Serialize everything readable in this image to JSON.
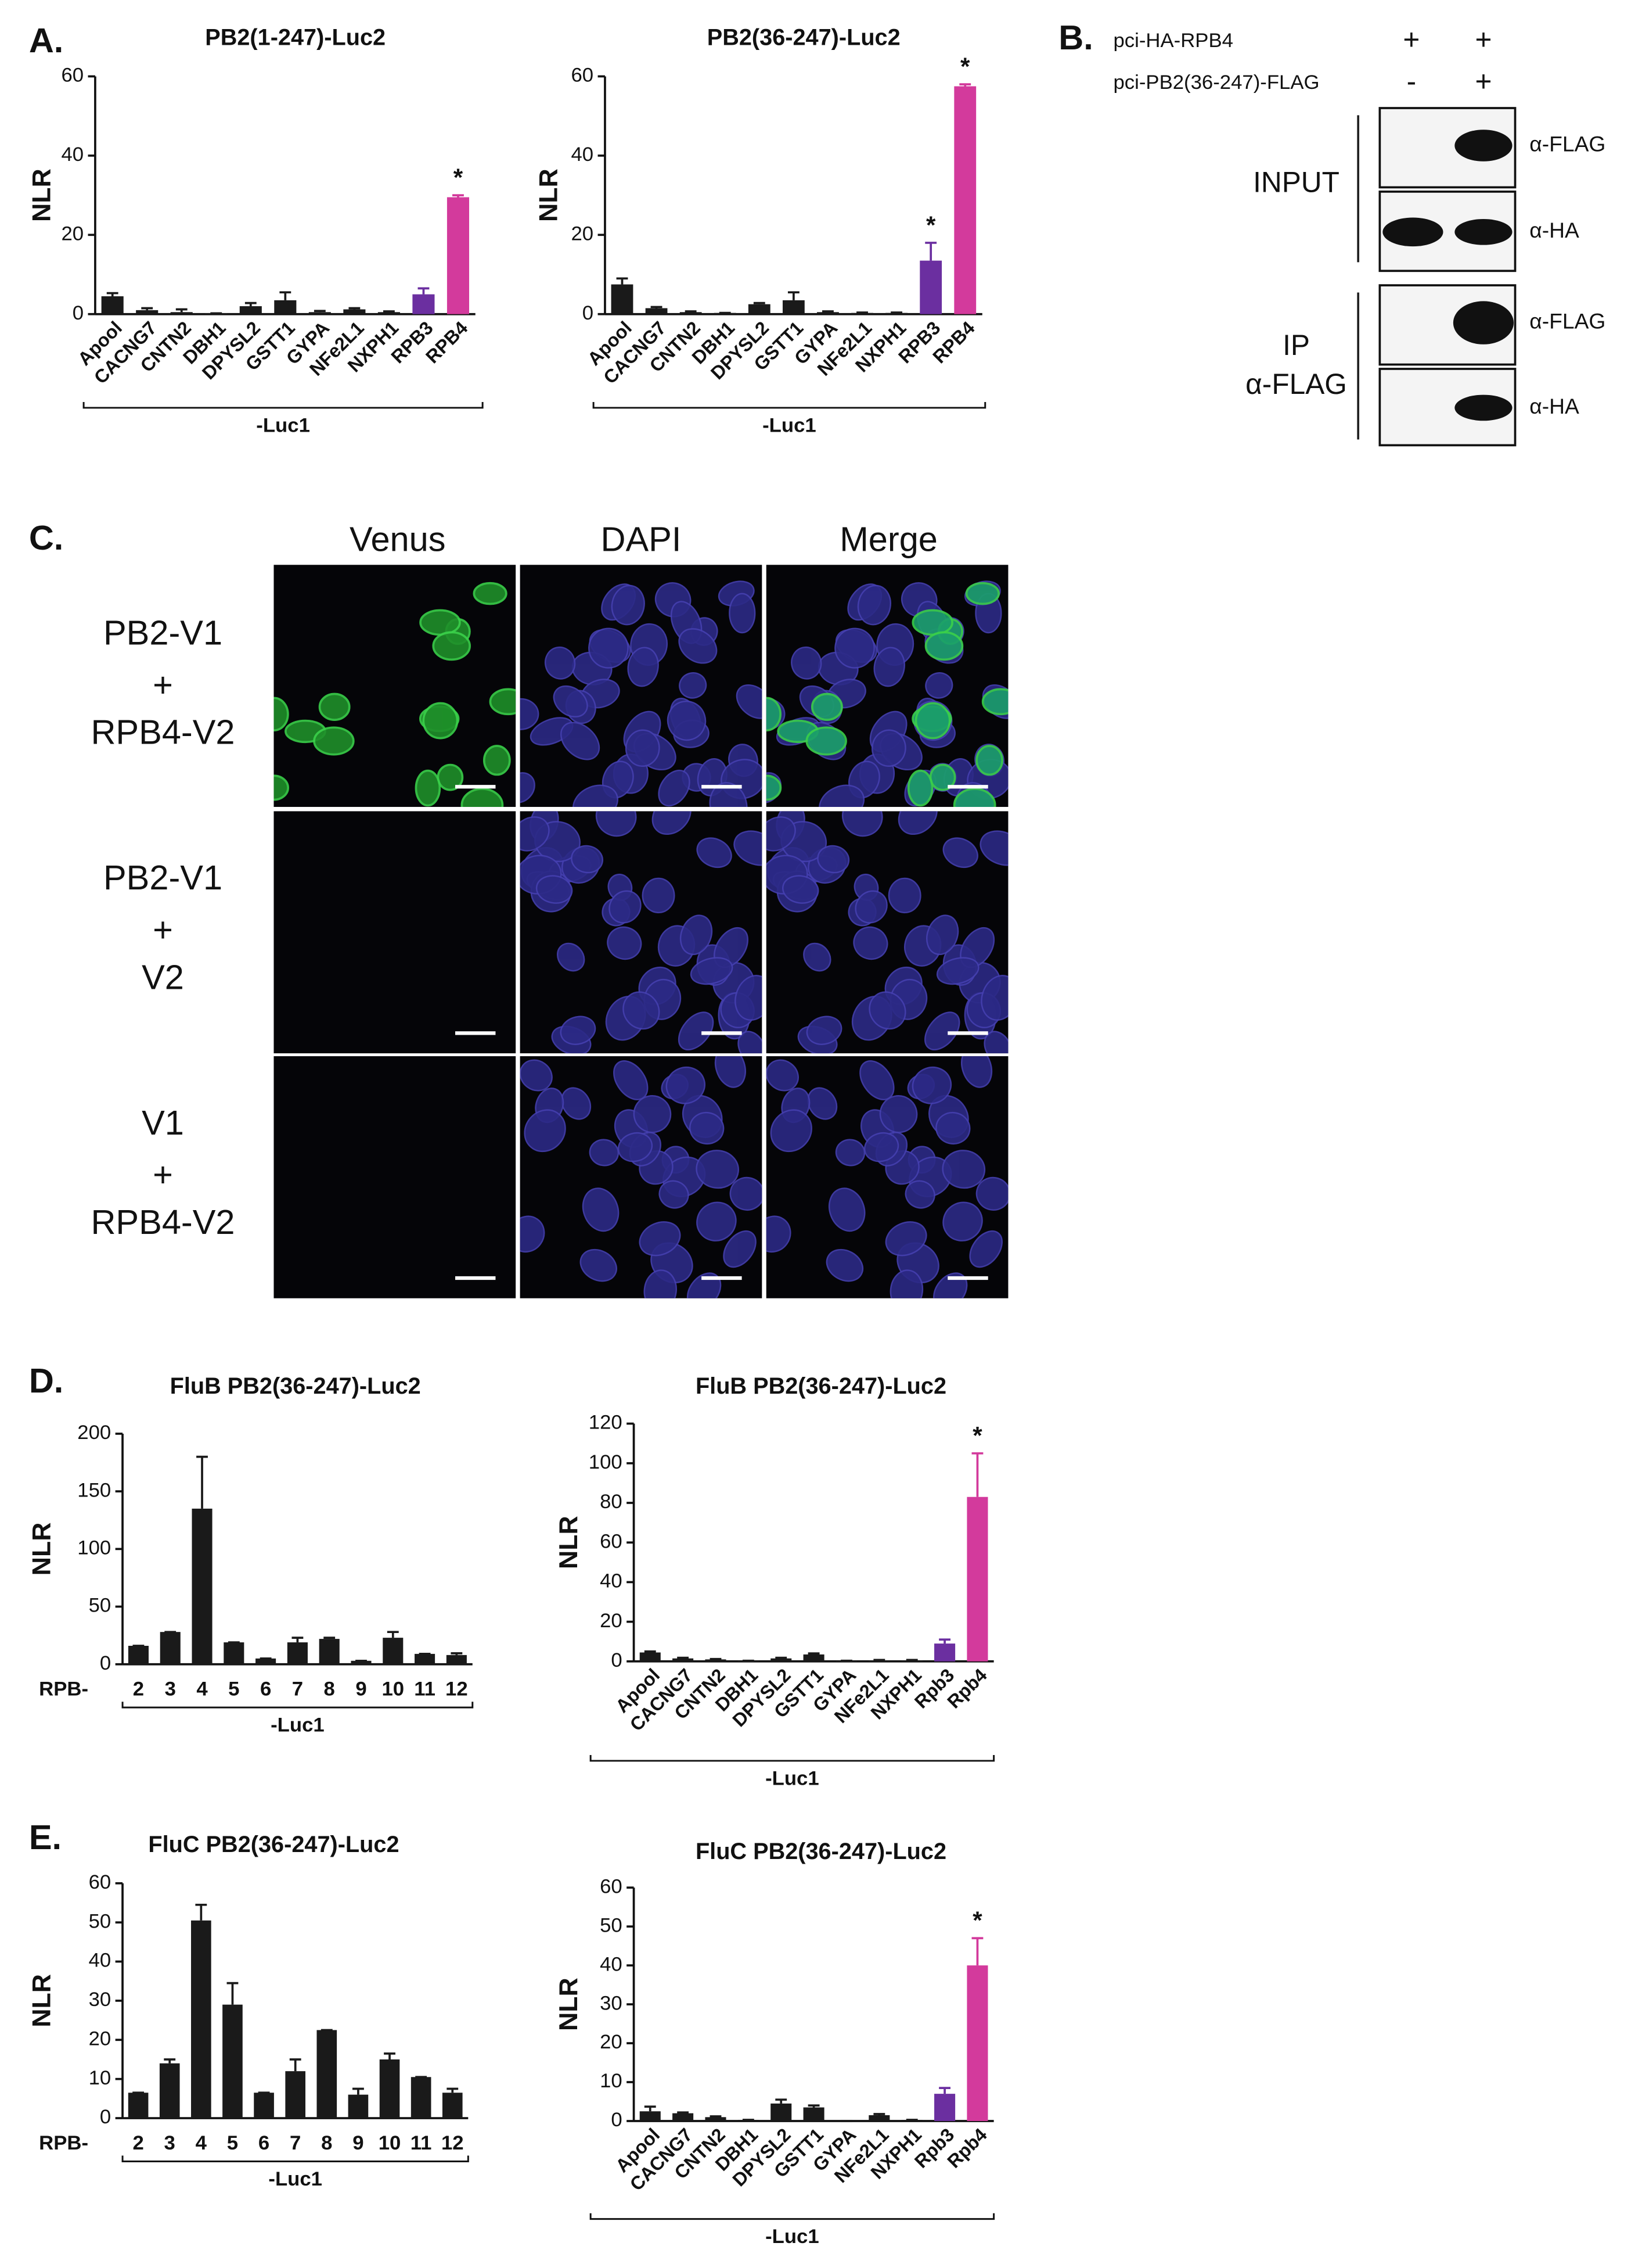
{
  "panel_labels": [
    "A.",
    "B.",
    "C.",
    "D.",
    "E."
  ],
  "chart_data": [
    {
      "type": "bar",
      "title": "PB2(1-247)-Luc2",
      "ylabel": "NLR",
      "xlabel": "-Luc1",
      "categories": [
        "Apool",
        "CACNG7",
        "CNTN2",
        "DBH1",
        "DPYSL2",
        "GSTT1",
        "GYPA",
        "NFe2L1",
        "NXPH1",
        "RPB3",
        "RPB4"
      ],
      "values": [
        4.5,
        1,
        0.5,
        0.2,
        2,
        3.5,
        0.5,
        1.2,
        0.5,
        5,
        29.5
      ],
      "errors": [
        0.8,
        0.5,
        0.7,
        0,
        0.8,
        2,
        0.3,
        0.3,
        0.2,
        1.5,
        0.5
      ],
      "colors": [
        "#1a1a1a",
        "#1a1a1a",
        "#1a1a1a",
        "#1a1a1a",
        "#1a1a1a",
        "#1a1a1a",
        "#1a1a1a",
        "#1a1a1a",
        "#1a1a1a",
        "#6b2fa0",
        "#d33a9c"
      ],
      "ylim": [
        0,
        60
      ],
      "yticks": [
        0,
        20,
        40,
        60
      ],
      "annotations": [
        {
          "text": "*",
          "category": "RPB4"
        }
      ]
    },
    {
      "type": "bar",
      "title": "PB2(36-247)-Luc2",
      "ylabel": "NLR",
      "xlabel": "-Luc1",
      "categories": [
        "Apool",
        "CACNG7",
        "CNTN2",
        "DBH1",
        "DPYSL2",
        "GSTT1",
        "GYPA",
        "NFe2L1",
        "NXPH1",
        "RPB3",
        "RPB4"
      ],
      "values": [
        7.5,
        1.5,
        0.5,
        0.3,
        2.5,
        3.5,
        0.5,
        0.3,
        0.3,
        13.5,
        57.5
      ],
      "errors": [
        1.5,
        0.3,
        0.2,
        0,
        0.3,
        2,
        0.2,
        0.1,
        0.1,
        4.5,
        0.5
      ],
      "colors": [
        "#1a1a1a",
        "#1a1a1a",
        "#1a1a1a",
        "#1a1a1a",
        "#1a1a1a",
        "#1a1a1a",
        "#1a1a1a",
        "#1a1a1a",
        "#1a1a1a",
        "#6b2fa0",
        "#d33a9c"
      ],
      "ylim": [
        0,
        60
      ],
      "yticks": [
        0,
        20,
        40,
        60
      ],
      "annotations": [
        {
          "text": "*",
          "category": "RPB3"
        },
        {
          "text": "*",
          "category": "RPB4"
        }
      ]
    },
    {
      "type": "bar",
      "title": "FluB PB2(36-247)-Luc2",
      "ylabel": "NLR",
      "xlabel": "-Luc1",
      "category_prefix": "RPB-",
      "categories": [
        "2",
        "3",
        "4",
        "5",
        "6",
        "7",
        "8",
        "9",
        "10",
        "11",
        "12"
      ],
      "values": [
        16,
        28,
        135,
        19,
        5,
        19,
        22,
        3,
        23,
        9,
        8
      ],
      "errors": [
        0,
        0,
        45,
        0,
        0,
        4,
        1,
        0,
        5,
        0,
        1.5
      ],
      "colors": [
        "#1a1a1a",
        "#1a1a1a",
        "#1a1a1a",
        "#1a1a1a",
        "#1a1a1a",
        "#1a1a1a",
        "#1a1a1a",
        "#1a1a1a",
        "#1a1a1a",
        "#1a1a1a",
        "#1a1a1a"
      ],
      "ylim": [
        0,
        200
      ],
      "yticks": [
        0,
        50,
        100,
        150,
        200
      ]
    },
    {
      "type": "bar",
      "title": "FluB PB2(36-247)-Luc2",
      "ylabel": "NLR",
      "xlabel": "-Luc1",
      "categories": [
        "Apool",
        "CACNG7",
        "CNTN2",
        "DBH1",
        "DPYSL2",
        "GSTT1",
        "GYPA",
        "NFe2L1",
        "NXPH1",
        "Rpb3",
        "Rpb4"
      ],
      "values": [
        4.5,
        1.5,
        1,
        0.3,
        1.5,
        3.5,
        0.3,
        0.5,
        0.5,
        9,
        83
      ],
      "errors": [
        0.5,
        0.3,
        0.2,
        0,
        0.3,
        0.5,
        0,
        0.2,
        0.2,
        2,
        22
      ],
      "colors": [
        "#1a1a1a",
        "#1a1a1a",
        "#1a1a1a",
        "#1a1a1a",
        "#1a1a1a",
        "#1a1a1a",
        "#1a1a1a",
        "#1a1a1a",
        "#1a1a1a",
        "#6b2fa0",
        "#d33a9c"
      ],
      "ylim": [
        0,
        120
      ],
      "yticks": [
        0,
        20,
        40,
        60,
        80,
        100,
        120
      ],
      "annotations": [
        {
          "text": "*",
          "category": "Rpb4"
        }
      ]
    },
    {
      "type": "bar",
      "title": "FluC PB2(36-247)-Luc2",
      "ylabel": "NLR",
      "xlabel": "-Luc1",
      "category_prefix": "RPB-",
      "categories": [
        "2",
        "3",
        "4",
        "5",
        "6",
        "7",
        "8",
        "9",
        "10",
        "11",
        "12"
      ],
      "values": [
        6.5,
        14,
        50.5,
        29,
        6.5,
        12,
        22.5,
        6,
        15,
        10.5,
        6.5
      ],
      "errors": [
        0,
        1,
        4,
        5.5,
        0,
        3,
        0,
        1.5,
        1.5,
        0,
        1
      ],
      "colors": [
        "#1a1a1a",
        "#1a1a1a",
        "#1a1a1a",
        "#1a1a1a",
        "#1a1a1a",
        "#1a1a1a",
        "#1a1a1a",
        "#1a1a1a",
        "#1a1a1a",
        "#1a1a1a",
        "#1a1a1a"
      ],
      "ylim": [
        0,
        60
      ],
      "yticks": [
        0,
        10,
        20,
        30,
        40,
        50,
        60
      ]
    },
    {
      "type": "bar",
      "title": "FluC PB2(36-247)-Luc2",
      "ylabel": "NLR",
      "xlabel": "-Luc1",
      "categories": [
        "Apool",
        "CACNG7",
        "CNTN2",
        "DBH1",
        "DPYSL2",
        "GSTT1",
        "GYPA",
        "NFe2L1",
        "NXPH1",
        "Rpb3",
        "Rpb4"
      ],
      "values": [
        2.5,
        2,
        1,
        0.3,
        4.5,
        3.5,
        0,
        1.5,
        0.3,
        7,
        40
      ],
      "errors": [
        1.2,
        0.2,
        0.2,
        0,
        1,
        0.5,
        0,
        0.3,
        0,
        1.5,
        7
      ],
      "colors": [
        "#1a1a1a",
        "#1a1a1a",
        "#1a1a1a",
        "#1a1a1a",
        "#1a1a1a",
        "#1a1a1a",
        "#1a1a1a",
        "#1a1a1a",
        "#1a1a1a",
        "#6b2fa0",
        "#d33a9c"
      ],
      "ylim": [
        0,
        60
      ],
      "yticks": [
        0,
        10,
        20,
        30,
        40,
        50,
        60
      ],
      "annotations": [
        {
          "text": "*",
          "category": "Rpb4"
        }
      ]
    }
  ],
  "western_blot": {
    "rows": [
      {
        "label": "pci-HA-RPB4",
        "lanes": [
          "+",
          "+"
        ]
      },
      {
        "label": "pci-PB2(36-247)-FLAG",
        "lanes": [
          "-",
          "+"
        ]
      }
    ],
    "groups": [
      {
        "label": [
          "INPUT"
        ],
        "blots": [
          "α-FLAG",
          "α-HA"
        ]
      },
      {
        "label": [
          "IP",
          "α-FLAG"
        ],
        "blots": [
          "α-FLAG",
          "α-HA"
        ]
      }
    ]
  },
  "microscopy": {
    "columns": [
      "Venus",
      "DAPI",
      "Merge"
    ],
    "rows": [
      [
        "PB2-V1",
        "+",
        "RPB4-V2"
      ],
      [
        "PB2-V1",
        "+",
        "V2"
      ],
      [
        "V1",
        "+",
        "RPB4-V2"
      ]
    ]
  }
}
